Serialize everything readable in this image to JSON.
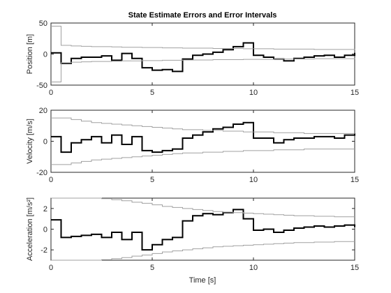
{
  "figure": {
    "title": "State Estimate Errors and Error Intervals",
    "xlabel": "Time [s]"
  },
  "colors": {
    "estimate": "#000000",
    "interval": "#a0a0a0",
    "axes": "#262626"
  },
  "chart_data": [
    {
      "type": "line",
      "ylabel": "Position [m]",
      "xlim": [
        0,
        15
      ],
      "ylim": [
        -50,
        50
      ],
      "xticks": [
        0,
        5,
        10,
        15
      ],
      "yticks": [
        -50,
        0,
        50
      ],
      "xtick_labels": [
        "0",
        "5",
        "10",
        "15"
      ],
      "ytick_labels": [
        "-50",
        "0",
        "50"
      ],
      "grid": false,
      "series": [
        {
          "role": "error",
          "step": true,
          "x": [
            0,
            0.5,
            1,
            1.5,
            2,
            2.5,
            3,
            3.5,
            4,
            4.5,
            5,
            5.5,
            6,
            6.5,
            7,
            7.5,
            8,
            8.5,
            9,
            9.5,
            10,
            10.5,
            11,
            11.5,
            12,
            12.5,
            13,
            13.5,
            14,
            14.5,
            15
          ],
          "y": [
            2,
            -15,
            -7,
            -5,
            -5,
            -3,
            -10,
            1,
            -7,
            -22,
            -26,
            -25,
            -28,
            -8,
            -2,
            0,
            3,
            7,
            12,
            18,
            -2,
            -5,
            -8,
            -11,
            -7,
            -5,
            -3,
            -2,
            -5,
            -2,
            2
          ]
        },
        {
          "role": "upper-bound",
          "step": true,
          "x": [
            0,
            0.5,
            1,
            1.5,
            2,
            2.5,
            3,
            3.5,
            4,
            4.5,
            5,
            5.5,
            6,
            6.5,
            7,
            7.5,
            8,
            8.5,
            9,
            9.5,
            10,
            10.5,
            11,
            11.5,
            12,
            12.5,
            13,
            13.5,
            14,
            14.5,
            15
          ],
          "y": [
            45,
            14,
            13,
            12.5,
            12,
            12,
            11.5,
            11,
            11,
            10.5,
            10.5,
            10,
            10,
            9.5,
            9.5,
            9.5,
            9,
            9,
            9,
            8.5,
            8.5,
            8.5,
            8,
            8,
            8,
            8,
            7.5,
            7.5,
            7.5,
            7.5,
            7
          ]
        },
        {
          "role": "lower-bound",
          "step": true,
          "x": [
            0,
            0.5,
            1,
            1.5,
            2,
            2.5,
            3,
            3.5,
            4,
            4.5,
            5,
            5.5,
            6,
            6.5,
            7,
            7.5,
            8,
            8.5,
            9,
            9.5,
            10,
            10.5,
            11,
            11.5,
            12,
            12.5,
            13,
            13.5,
            14,
            14.5,
            15
          ],
          "y": [
            -45,
            -14,
            -13,
            -12.5,
            -12,
            -12,
            -11.5,
            -11,
            -11,
            -10.5,
            -10.5,
            -10,
            -10,
            -9.5,
            -9.5,
            -9.5,
            -9,
            -9,
            -9,
            -8.5,
            -8.5,
            -8.5,
            -8,
            -8,
            -8,
            -8,
            -7.5,
            -7.5,
            -7.5,
            -7.5,
            -7
          ]
        }
      ]
    },
    {
      "type": "line",
      "ylabel": "Velocity [m/s]",
      "xlim": [
        0,
        15
      ],
      "ylim": [
        -20,
        20
      ],
      "xticks": [
        0,
        5,
        10,
        15
      ],
      "yticks": [
        -20,
        0,
        20
      ],
      "xtick_labels": [
        "0",
        "5",
        "10",
        "15"
      ],
      "ytick_labels": [
        "-20",
        "0",
        "20"
      ],
      "grid": false,
      "series": [
        {
          "role": "error",
          "step": true,
          "x": [
            0,
            0.5,
            1,
            1.5,
            2,
            2.5,
            3,
            3.5,
            4,
            4.5,
            5,
            5.5,
            6,
            6.5,
            7,
            7.5,
            8,
            8.5,
            9,
            9.5,
            10,
            10.5,
            11,
            11.5,
            12,
            12.5,
            13,
            13.5,
            14,
            14.5,
            15
          ],
          "y": [
            3,
            -7,
            -1,
            1,
            3,
            -1,
            4,
            -2,
            3,
            -6,
            -7,
            -6,
            -5,
            2,
            4,
            6,
            8,
            9,
            11,
            12,
            2,
            2,
            -1,
            1,
            2,
            2,
            3,
            3,
            2,
            4,
            5
          ]
        },
        {
          "role": "upper-bound",
          "step": true,
          "x": [
            0,
            0.5,
            1,
            1.5,
            2,
            2.5,
            3,
            3.5,
            4,
            4.5,
            5,
            5.5,
            6,
            6.5,
            7,
            7.5,
            8,
            8.5,
            9,
            9.5,
            10,
            10.5,
            11,
            11.5,
            12,
            12.5,
            13,
            13.5,
            14,
            14.5,
            15
          ],
          "y": [
            15,
            15,
            14,
            13,
            12,
            11.5,
            11,
            10.5,
            10,
            9.5,
            9,
            8.5,
            8,
            7.5,
            7.5,
            7,
            7,
            6.5,
            6.5,
            6,
            6,
            6,
            5.5,
            5.5,
            5.5,
            5,
            5,
            5,
            5,
            5,
            5
          ]
        },
        {
          "role": "lower-bound",
          "step": true,
          "x": [
            0,
            0.5,
            1,
            1.5,
            2,
            2.5,
            3,
            3.5,
            4,
            4.5,
            5,
            5.5,
            6,
            6.5,
            7,
            7.5,
            8,
            8.5,
            9,
            9.5,
            10,
            10.5,
            11,
            11.5,
            12,
            12.5,
            13,
            13.5,
            14,
            14.5,
            15
          ],
          "y": [
            -15,
            -15,
            -14,
            -13,
            -12,
            -11.5,
            -11,
            -10.5,
            -10,
            -9.5,
            -9,
            -8.5,
            -8,
            -7.5,
            -7.5,
            -7,
            -7,
            -6.5,
            -6.5,
            -6,
            -6,
            -6,
            -5.5,
            -5.5,
            -5.5,
            -5,
            -5,
            -5,
            -5,
            -5,
            -5
          ]
        }
      ]
    },
    {
      "type": "line",
      "ylabel": "Acceleration [m/s²]",
      "xlim": [
        0,
        15
      ],
      "ylim": [
        -3,
        3
      ],
      "xticks": [
        0,
        5,
        10,
        15
      ],
      "yticks": [
        -2,
        0,
        2
      ],
      "xtick_labels": [
        "0",
        "5",
        "10",
        "15"
      ],
      "ytick_labels": [
        "-2",
        "0",
        "2"
      ],
      "grid": false,
      "series": [
        {
          "role": "error",
          "step": true,
          "x": [
            0,
            0.5,
            1,
            1.5,
            2,
            2.5,
            3,
            3.5,
            4,
            4.5,
            5,
            5.5,
            6,
            6.5,
            7,
            7.5,
            8,
            8.5,
            9,
            9.5,
            10,
            10.5,
            11,
            11.5,
            12,
            12.5,
            13,
            13.5,
            14,
            14.5,
            15
          ],
          "y": [
            0.9,
            -0.8,
            -0.7,
            -0.6,
            -0.5,
            -0.8,
            -0.3,
            -1.0,
            -0.3,
            -2.0,
            -1.5,
            -1.0,
            -0.8,
            0.8,
            1.3,
            1.5,
            1.4,
            1.6,
            1.9,
            1.0,
            -0.1,
            0.0,
            -0.3,
            -0.1,
            0.1,
            0.2,
            0.3,
            0.2,
            0.3,
            0.4,
            0.2
          ]
        },
        {
          "role": "upper-bound",
          "step": true,
          "x": [
            0,
            0.5,
            1,
            1.5,
            2,
            2.5,
            3,
            3.5,
            4,
            4.5,
            5,
            5.5,
            6,
            6.5,
            7,
            7.5,
            8,
            8.5,
            9,
            9.5,
            10,
            10.5,
            11,
            11.5,
            12,
            12.5,
            13,
            13.5,
            14,
            14.5,
            15
          ],
          "y": [
            3,
            3,
            3,
            3,
            3,
            2.95,
            2.85,
            2.75,
            2.6,
            2.5,
            2.35,
            2.2,
            2.1,
            2.0,
            1.9,
            1.8,
            1.7,
            1.65,
            1.6,
            1.55,
            1.5,
            1.45,
            1.4,
            1.35,
            1.3,
            1.3,
            1.25,
            1.25,
            1.2,
            1.2,
            1.2
          ]
        },
        {
          "role": "lower-bound",
          "step": true,
          "x": [
            0,
            0.5,
            1,
            1.5,
            2,
            2.5,
            3,
            3.5,
            4,
            4.5,
            5,
            5.5,
            6,
            6.5,
            7,
            7.5,
            8,
            8.5,
            9,
            9.5,
            10,
            10.5,
            11,
            11.5,
            12,
            12.5,
            13,
            13.5,
            14,
            14.5,
            15
          ],
          "y": [
            -3,
            -3,
            -3,
            -3,
            -3,
            -2.95,
            -2.85,
            -2.75,
            -2.6,
            -2.5,
            -2.35,
            -2.2,
            -2.1,
            -2.0,
            -1.9,
            -1.8,
            -1.7,
            -1.65,
            -1.6,
            -1.55,
            -1.5,
            -1.45,
            -1.4,
            -1.35,
            -1.3,
            -1.3,
            -1.25,
            -1.25,
            -1.2,
            -1.2,
            -1.2
          ]
        }
      ]
    }
  ]
}
